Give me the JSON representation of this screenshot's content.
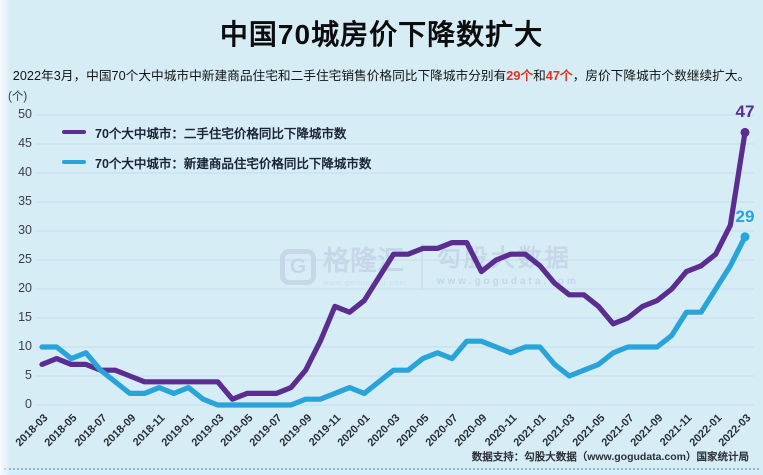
{
  "title": "中国70城房价下降数扩大",
  "subtitle": {
    "part1": "2022年3月，中国70个大中城市中新建商品住宅和二手住宅销售价格同比下降城市分别有",
    "highlight1": "29个",
    "part2": "和",
    "highlight2": "47个",
    "part3": "，房价下降城市个数继续扩大。"
  },
  "y_axis_unit": "(个)",
  "legend": {
    "item1": "70个大中城市：二手住宅价格同比下降城市数",
    "item2": "70个大中城市：新建商品住宅价格同比下降城市数"
  },
  "watermark": {
    "logo_letter": "G",
    "brand_cn": "格隆汇",
    "brand_en": "www.gelonghui.com",
    "partner_cn": "勾股大数据",
    "partner_en": "www.gogudata.com"
  },
  "footer_text": "数据支持：勾股大数据（www.gogudata.com）国家统计局",
  "colors": {
    "background": "#d6edf6",
    "grid": "#c4dde9",
    "highlight_red": "#e03222",
    "second_hand_purple": "#5b2d90",
    "new_home_blue": "#28a4da"
  },
  "chart_data": {
    "type": "line",
    "title": "中国70城房价下降数扩大",
    "ylabel": "(个)",
    "ylim": [
      0,
      50
    ],
    "y_ticks": [
      0,
      5,
      10,
      15,
      20,
      25,
      30,
      35,
      40,
      45,
      50
    ],
    "grid": true,
    "legend_position": "top-left",
    "x": [
      "2018-03",
      "2018-04",
      "2018-05",
      "2018-06",
      "2018-07",
      "2018-08",
      "2018-09",
      "2018-10",
      "2018-11",
      "2018-12",
      "2019-01",
      "2019-02",
      "2019-03",
      "2019-04",
      "2019-05",
      "2019-06",
      "2019-07",
      "2019-08",
      "2019-09",
      "2019-10",
      "2019-11",
      "2019-12",
      "2020-01",
      "2020-02",
      "2020-03",
      "2020-04",
      "2020-05",
      "2020-06",
      "2020-07",
      "2020-08",
      "2020-09",
      "2020-10",
      "2020-11",
      "2020-12",
      "2021-01",
      "2021-02",
      "2021-03",
      "2021-04",
      "2021-05",
      "2021-06",
      "2021-07",
      "2021-08",
      "2021-09",
      "2021-10",
      "2021-11",
      "2021-12",
      "2022-01",
      "2022-02",
      "2022-03"
    ],
    "x_tick_labels": [
      "2018-03",
      "2018-05",
      "2018-07",
      "2018-09",
      "2018-11",
      "2019-01",
      "2019-03",
      "2019-05",
      "2019-07",
      "2019-09",
      "2019-11",
      "2020-01",
      "2020-03",
      "2020-05",
      "2020-07",
      "2020-09",
      "2020-11",
      "2021-01",
      "2021-03",
      "2021-05",
      "2021-07",
      "2021-09",
      "2021-11",
      "2022-01",
      "2022-03"
    ],
    "series": [
      {
        "name": "70个大中城市：二手住宅价格同比下降城市数",
        "color": "#5b2d90",
        "end_label": "47",
        "values": [
          7,
          8,
          7,
          7,
          6,
          6,
          5,
          4,
          4,
          4,
          4,
          4,
          4,
          1,
          2,
          2,
          2,
          3,
          6,
          11,
          17,
          16,
          18,
          22,
          26,
          26,
          27,
          27,
          28,
          28,
          23,
          25,
          26,
          26,
          24,
          21,
          19,
          19,
          17,
          14,
          15,
          17,
          18,
          20,
          23,
          24,
          26,
          31,
          47
        ]
      },
      {
        "name": "70个大中城市：新建商品住宅价格同比下降城市数",
        "color": "#28a4da",
        "end_label": "29",
        "values": [
          10,
          10,
          8,
          9,
          6,
          4,
          2,
          2,
          3,
          2,
          3,
          1,
          0,
          0,
          0,
          0,
          0,
          0,
          1,
          1,
          2,
          3,
          2,
          4,
          6,
          6,
          8,
          9,
          8,
          11,
          11,
          10,
          9,
          10,
          10,
          7,
          5,
          6,
          7,
          9,
          10,
          10,
          10,
          12,
          16,
          16,
          20,
          24,
          29
        ]
      }
    ]
  }
}
